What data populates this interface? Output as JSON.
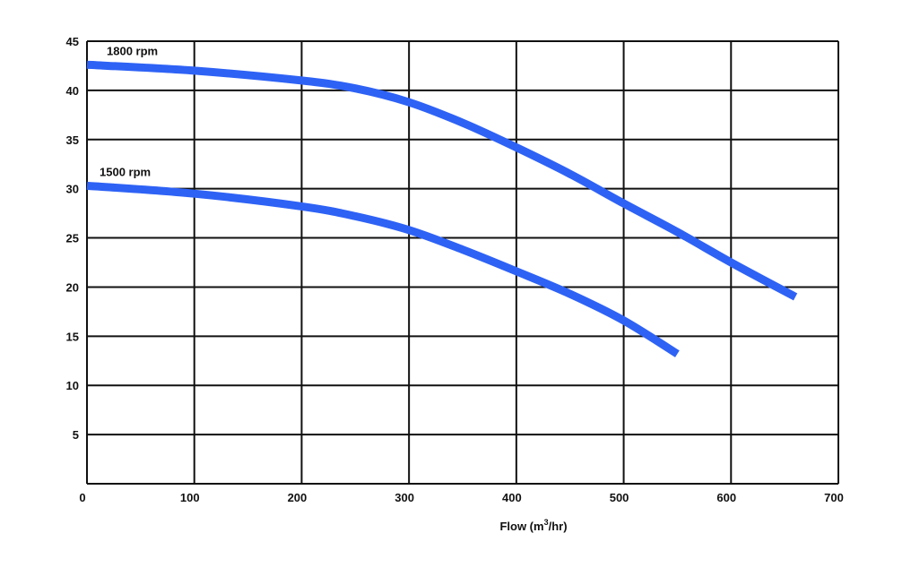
{
  "chart_data": {
    "type": "line",
    "title": "",
    "xlabel": "Flow (m",
    "xlabel_sup": "3",
    "xlabel_suffix": "/hr)",
    "ylabel": "",
    "xlim": [
      0,
      700
    ],
    "ylim": [
      0,
      45
    ],
    "x_ticks": [
      0,
      100,
      200,
      300,
      400,
      500,
      600,
      700
    ],
    "y_ticks": [
      5,
      10,
      15,
      20,
      25,
      30,
      35,
      40,
      45
    ],
    "x_tick_labels": [
      "0",
      "100",
      "200",
      "300",
      "400",
      "500",
      "600",
      "700"
    ],
    "y_tick_labels": [
      "5",
      "10",
      "15",
      "20",
      "25",
      "30",
      "35",
      "40",
      "45"
    ],
    "grid": true,
    "series_color": "#2e62f5",
    "series": [
      {
        "name": "1800 rpm",
        "x": [
          0,
          100,
          200,
          250,
          300,
          350,
          400,
          450,
          500,
          550,
          600,
          660
        ],
        "y": [
          42.6,
          42.0,
          41.0,
          40.2,
          38.8,
          36.7,
          34.2,
          31.5,
          28.5,
          25.6,
          22.5,
          19.0
        ]
      },
      {
        "name": "1500 rpm",
        "x": [
          0,
          100,
          200,
          250,
          300,
          350,
          400,
          450,
          500,
          550
        ],
        "y": [
          30.3,
          29.5,
          28.2,
          27.2,
          25.8,
          23.8,
          21.6,
          19.3,
          16.6,
          13.2
        ]
      }
    ]
  }
}
